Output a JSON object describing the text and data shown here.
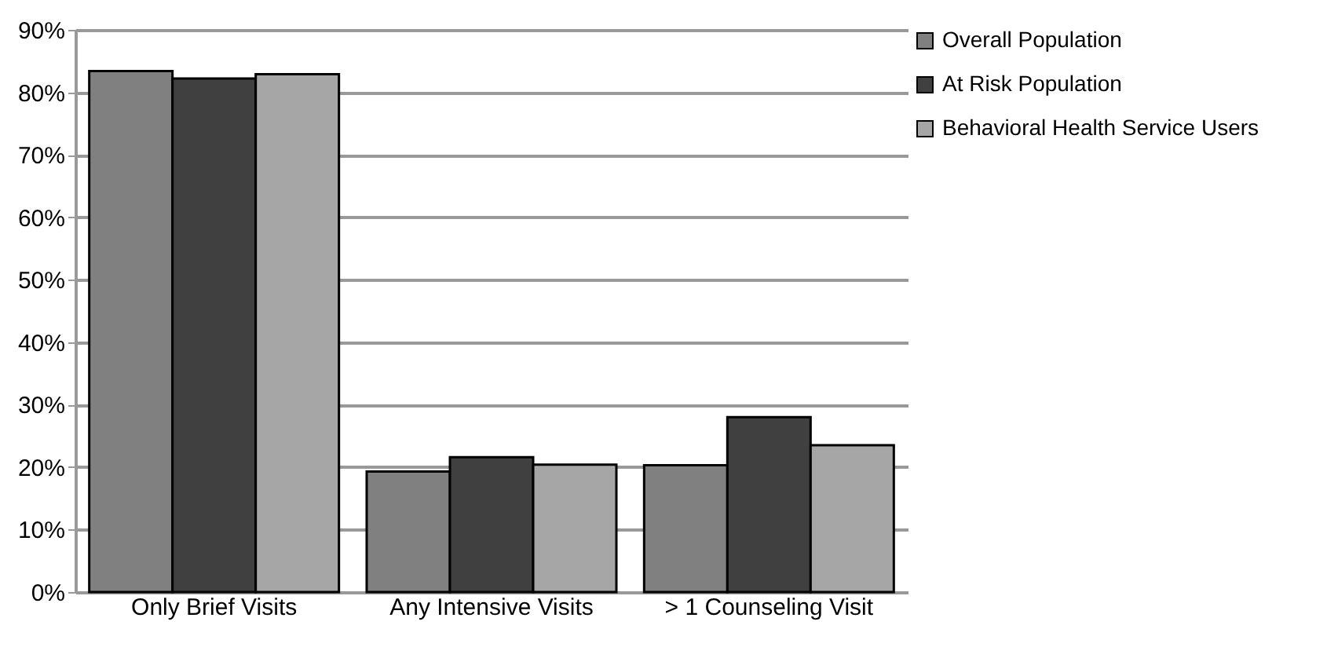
{
  "chart_data": {
    "type": "bar",
    "categories": [
      "Only Brief Visits",
      "Any Intensive Visits",
      "> 1 Counseling Visit"
    ],
    "series": [
      {
        "name": "Overall Population",
        "color": "#808080",
        "values": [
          83.4,
          19.3,
          20.3
        ]
      },
      {
        "name": "At Risk Population",
        "color": "#404040",
        "values": [
          82.2,
          21.6,
          28.0
        ]
      },
      {
        "name": "Behavioral Health Service Users",
        "color": "#a6a6a6",
        "values": [
          82.9,
          20.4,
          23.5
        ]
      }
    ],
    "ylim": [
      0,
      90
    ],
    "yticks": [
      {
        "value": 0,
        "label": "0%"
      },
      {
        "value": 10,
        "label": "10%"
      },
      {
        "value": 20,
        "label": "20%"
      },
      {
        "value": 30,
        "label": "30%"
      },
      {
        "value": 40,
        "label": "40%"
      },
      {
        "value": 50,
        "label": "50%"
      },
      {
        "value": 60,
        "label": "60%"
      },
      {
        "value": 70,
        "label": "70%"
      },
      {
        "value": 80,
        "label": "80%"
      },
      {
        "value": 90,
        "label": "90%"
      }
    ],
    "grid": "y",
    "legend": "right"
  }
}
